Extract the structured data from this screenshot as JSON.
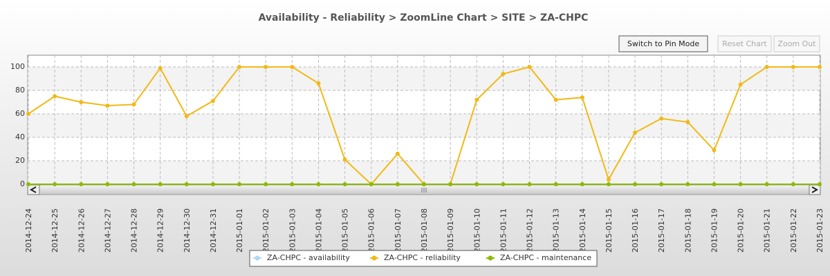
{
  "chart_data": {
    "type": "line",
    "title": "Availability - Reliability > ZoomLine Chart >  SITE > ZA-CHPC",
    "buttons": [
      "Switch to Pin Mode",
      "Reset Chart",
      "Zoom Out"
    ],
    "categories": [
      "2014-12-24",
      "2014-12-25",
      "2014-12-26",
      "2014-12-27",
      "2014-12-28",
      "2014-12-29",
      "2014-12-30",
      "2014-12-31",
      "2015-01-01",
      "2015-01-02",
      "2015-01-03",
      "2015-01-04",
      "2015-01-05",
      "2015-01-06",
      "2015-01-07",
      "2015-01-08",
      "2015-01-09",
      "2015-01-10",
      "2015-01-11",
      "2015-01-12",
      "2015-01-13",
      "2015-01-14",
      "2015-01-15",
      "2015-01-16",
      "2015-01-17",
      "2015-01-18",
      "2015-01-19",
      "2015-01-20",
      "2015-01-21",
      "2015-01-22",
      "2015-01-23"
    ],
    "series": [
      {
        "name": "ZA-CHPC - availability",
        "color": "#afd8f8",
        "values": [
          null,
          null,
          null,
          null,
          null,
          null,
          null,
          null,
          null,
          null,
          null,
          null,
          null,
          null,
          null,
          null,
          null,
          null,
          null,
          null,
          null,
          null,
          null,
          null,
          null,
          null,
          null,
          null,
          null,
          null,
          null
        ]
      },
      {
        "name": "ZA-CHPC - reliability",
        "color": "#f2b915",
        "values": [
          60,
          75,
          70,
          67,
          68,
          99,
          58,
          71,
          100,
          100,
          100,
          86,
          21,
          0,
          26,
          0,
          0,
          72,
          94,
          100,
          72,
          74,
          4,
          44,
          56,
          53,
          29,
          85,
          100,
          100,
          100
        ]
      },
      {
        "name": "ZA-CHPC - maintenance",
        "color": "#8bba00",
        "values": [
          0,
          0,
          0,
          0,
          0,
          0,
          0,
          0,
          0,
          0,
          0,
          0,
          0,
          0,
          0,
          0,
          0,
          0,
          0,
          0,
          0,
          0,
          0,
          0,
          0,
          0,
          0,
          0,
          0,
          0,
          0
        ]
      }
    ],
    "ylim": [
      0,
      110
    ],
    "yticks": [
      0,
      20,
      40,
      60,
      80,
      100
    ],
    "grid": true,
    "legend": "bottom"
  }
}
